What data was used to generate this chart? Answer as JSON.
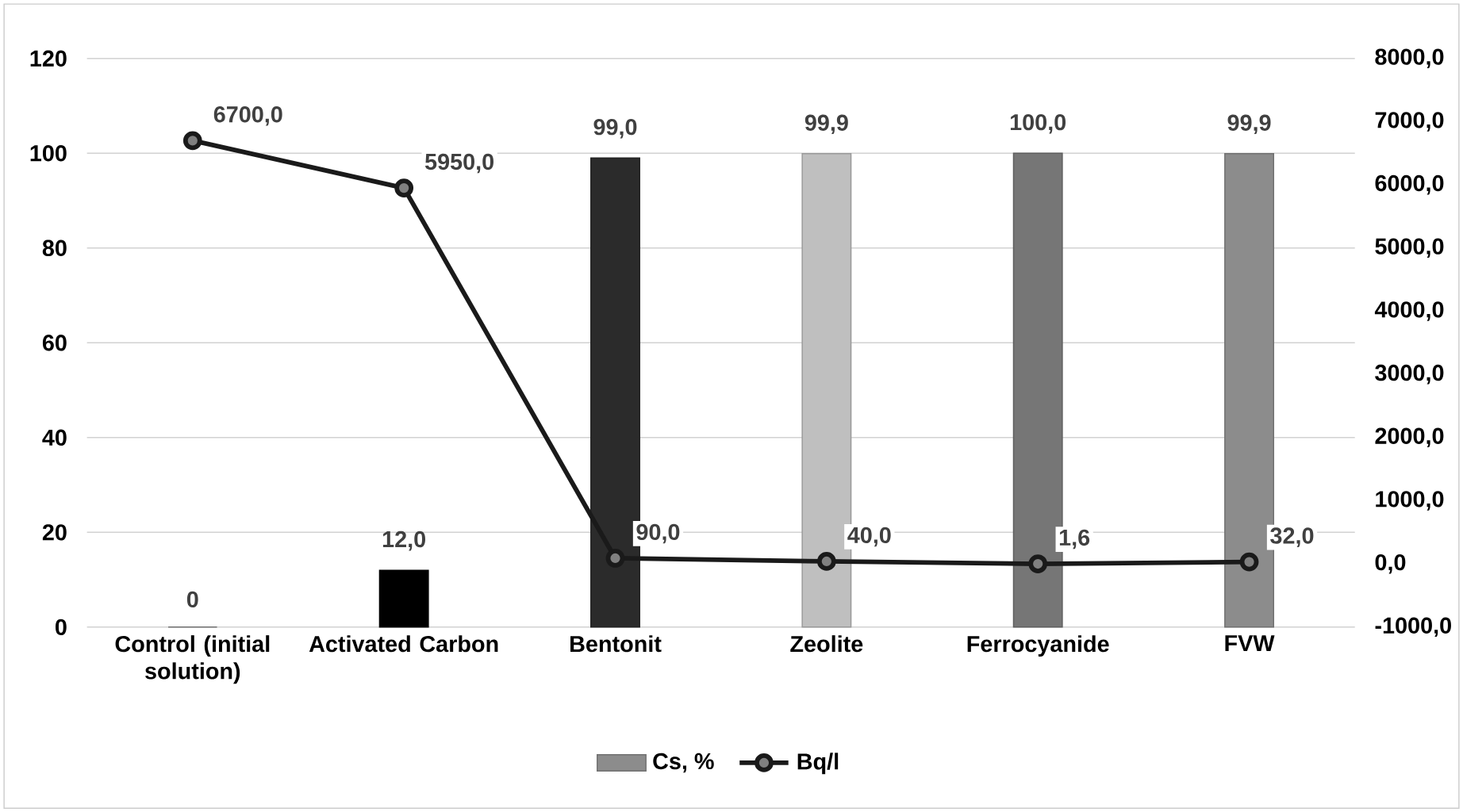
{
  "chart_data": {
    "type": "bar",
    "categories": [
      "Control (initial solution)",
      "Activated Carbon",
      "Bentonit",
      "Zeolite",
      "Ferrocyanide",
      "FVW"
    ],
    "series": [
      {
        "name": "Cs, %",
        "color": "#8c8c8c",
        "colors": [
          "#8c8c8c",
          "#000000",
          "#2b2b2b",
          "#bfbfbf",
          "#767676",
          "#8c8c8c"
        ],
        "values": [
          0,
          12,
          99,
          99.9,
          100,
          99.9
        ],
        "value_labels": [
          "0",
          "12,0",
          "99,0",
          "99,9",
          "100,0",
          "99,9"
        ]
      },
      {
        "name": "Bq/l",
        "type": "line",
        "axis": "y2",
        "color": "#1a1a1a",
        "marker": "circle",
        "values": [
          6700,
          5950,
          90,
          40,
          1.6,
          32
        ],
        "value_labels": [
          "6700,0",
          "5950,0",
          "90,0",
          "40,0",
          "1,6",
          "32,0"
        ]
      }
    ],
    "ylim": [
      0,
      120
    ],
    "yticks": [
      0,
      20,
      40,
      60,
      80,
      100,
      120
    ],
    "y2lim": [
      -1000,
      8000
    ],
    "y2ticks": [
      {
        "value": -1000,
        "label": "-1000,0"
      },
      {
        "value": 0,
        "label": "0,0"
      },
      {
        "value": 1000,
        "label": "1000,0"
      },
      {
        "value": 2000,
        "label": "2000,0"
      },
      {
        "value": 3000,
        "label": "3000,0"
      },
      {
        "value": 4000,
        "label": "4000,0"
      },
      {
        "value": 5000,
        "label": "5000,0"
      },
      {
        "value": 6000,
        "label": "6000,0"
      },
      {
        "value": 7000,
        "label": "7000,0"
      },
      {
        "value": 8000,
        "label": "8000,0"
      }
    ],
    "grid": "y",
    "legend": "bottom"
  }
}
